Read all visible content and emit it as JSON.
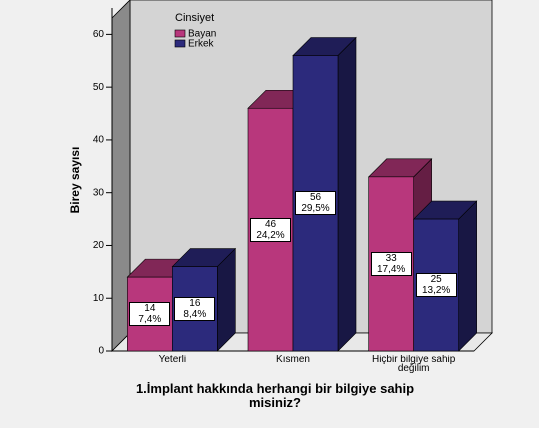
{
  "chart_data": {
    "type": "bar3d",
    "title": "1.İmplant  hakkında herhangi bir bilgiye sahip misiniz?",
    "y_label": "Birey sayısı",
    "legend_title": "Cinsiyet",
    "categories": [
      "Yeterli",
      "Kısmen",
      "Hiçbir bilgiye sahip değilim"
    ],
    "series": [
      {
        "name": "Bayan",
        "color": "#b8377c",
        "values": [
          14,
          46,
          33
        ],
        "value_labels": [
          "14\n7,4%",
          "46\n24,2%",
          "33\n17,4%"
        ]
      },
      {
        "name": "Erkek",
        "color": "#2c2a7c",
        "values": [
          16,
          56,
          25
        ],
        "value_labels": [
          "16\n8,4%",
          "56\n29,5%",
          "25\n13,2%"
        ]
      }
    ],
    "ylim": [
      0,
      65
    ],
    "yticks": [
      0,
      10,
      20,
      30,
      40,
      50,
      60
    ],
    "legend": "upper left"
  }
}
